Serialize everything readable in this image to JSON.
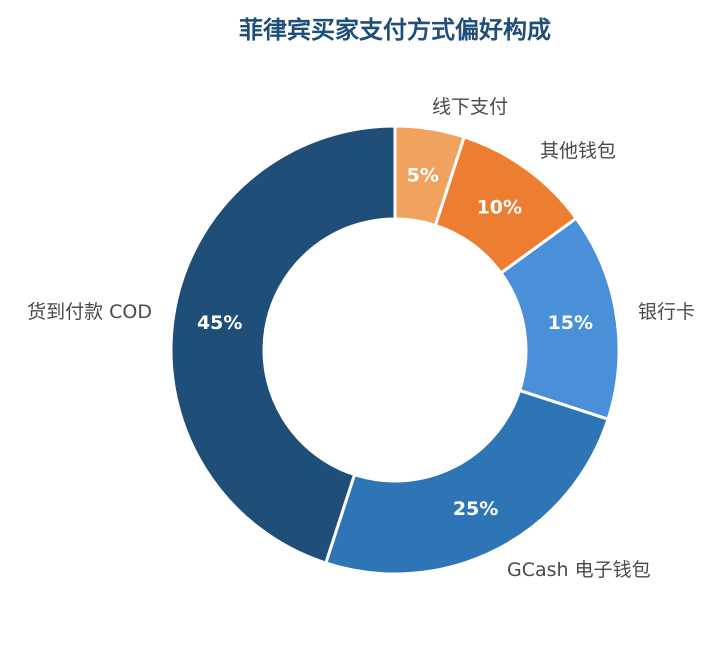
{
  "chart_data": {
    "type": "pie",
    "variant": "donut",
    "title": "菲律宾买家支付方式偏好构成",
    "title_color": "#1f4e79",
    "unit": "%",
    "slices": [
      {
        "label": "线下支付",
        "value": 5,
        "value_label": "5%",
        "color": "#f0a35e"
      },
      {
        "label": "其他钱包",
        "value": 10,
        "value_label": "10%",
        "color": "#ed7d31"
      },
      {
        "label": "银行卡",
        "value": 15,
        "value_label": "15%",
        "color": "#4a90d9"
      },
      {
        "label": "GCash 电子钱包",
        "value": 25,
        "value_label": "25%",
        "color": "#2e75b6"
      },
      {
        "label": "货到付款 COD",
        "value": 45,
        "value_label": "45%",
        "color": "#1f4e79"
      }
    ],
    "legend": "none"
  }
}
